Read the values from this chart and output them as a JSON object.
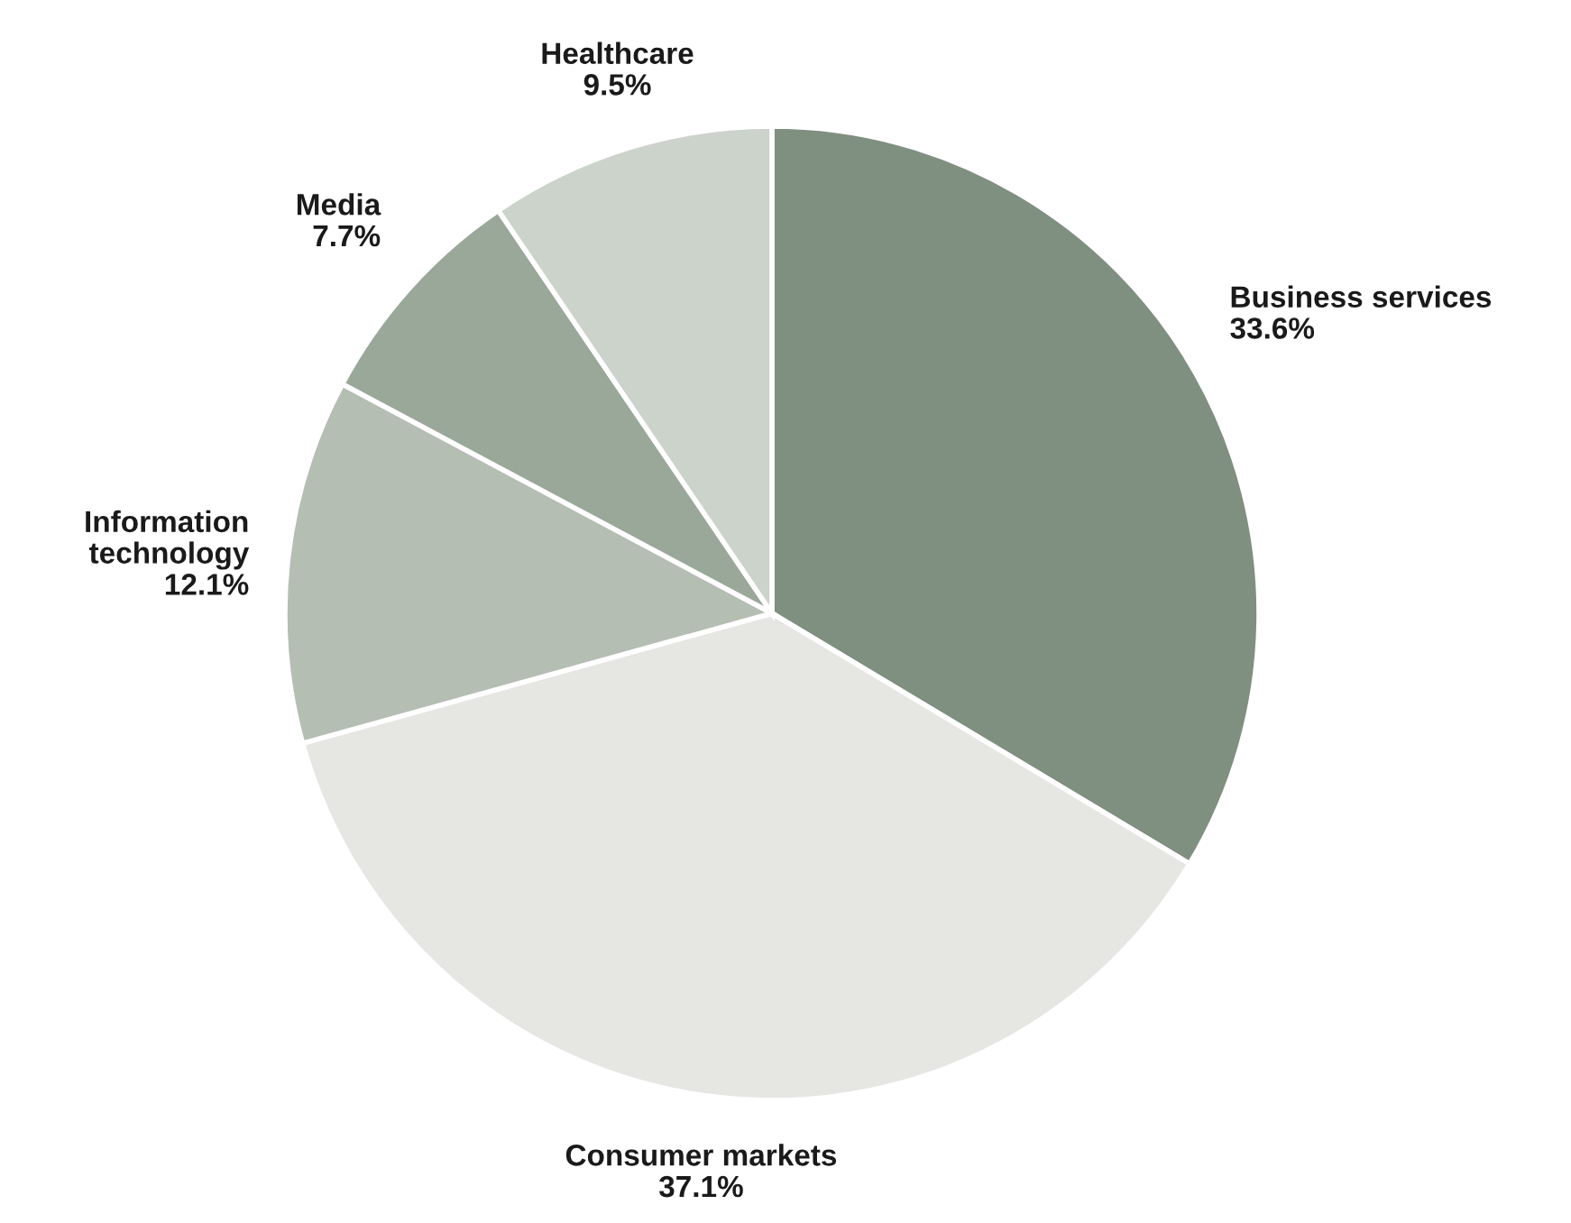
{
  "chart_data": {
    "type": "pie",
    "categories": [
      "Business services",
      "Consumer markets",
      "Information\ntechnology",
      "Media",
      "Healthcare"
    ],
    "values": [
      33.6,
      37.1,
      12.1,
      7.7,
      9.5
    ],
    "value_labels": [
      "33.6%",
      "37.1%",
      "12.1%",
      "7.7%",
      "9.5%"
    ],
    "colors": [
      "#7f8f80",
      "#e6e7e3",
      "#b4beb3",
      "#9aa899",
      "#ccd3cb"
    ]
  }
}
